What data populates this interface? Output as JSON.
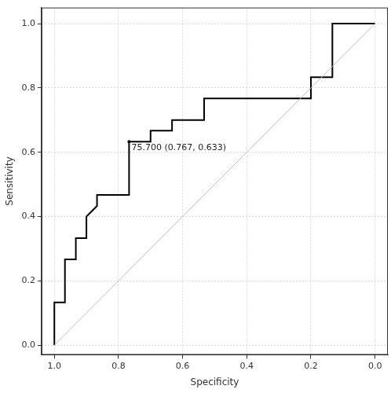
{
  "chart_data": {
    "type": "line",
    "x_label": "Specificity",
    "y_label": "Sensitivity",
    "xlim": [
      1.04,
      -0.04
    ],
    "ylim": [
      -0.03,
      1.05
    ],
    "xticks": [
      {
        "value": 1,
        "label": "1.0"
      },
      {
        "value": 0.8,
        "label": "0.8"
      },
      {
        "value": 0.6,
        "label": "0.6"
      },
      {
        "value": 0.4,
        "label": "0.4"
      },
      {
        "value": 0.2,
        "label": "0.2"
      },
      {
        "value": 0,
        "label": "0.0"
      }
    ],
    "yticks": [
      {
        "value": 0,
        "label": "0.0"
      },
      {
        "value": 0.2,
        "label": "0.2"
      },
      {
        "value": 0.4,
        "label": "0.4"
      },
      {
        "value": 0.6,
        "label": "0.6"
      },
      {
        "value": 0.8,
        "label": "0.8"
      },
      {
        "value": 1,
        "label": "1.0"
      }
    ],
    "grid": true,
    "series": [
      {
        "color": "#000000",
        "x": [
          1.0,
          1.0,
          0.967,
          0.967,
          0.933,
          0.933,
          0.9,
          0.9,
          0.867,
          0.867,
          0.767,
          0.767,
          0.7,
          0.7,
          0.633,
          0.633,
          0.533,
          0.533,
          0.2,
          0.2,
          0.133,
          0.133,
          0.0
        ],
        "values": [
          0.0,
          0.133,
          0.133,
          0.267,
          0.267,
          0.333,
          0.333,
          0.4,
          0.433,
          0.467,
          0.467,
          0.633,
          0.633,
          0.667,
          0.667,
          0.7,
          0.7,
          0.767,
          0.767,
          0.833,
          0.833,
          1.0,
          1.0
        ]
      },
      {
        "color": "#c0c0c0",
        "x": [
          1.0,
          0.0
        ],
        "values": [
          0.0,
          1.0
        ]
      }
    ],
    "annotations": [
      {
        "text": "75.700 (0.767, 0.633)",
        "x": 0.767,
        "y": 0.633,
        "marker": "circle"
      }
    ]
  }
}
